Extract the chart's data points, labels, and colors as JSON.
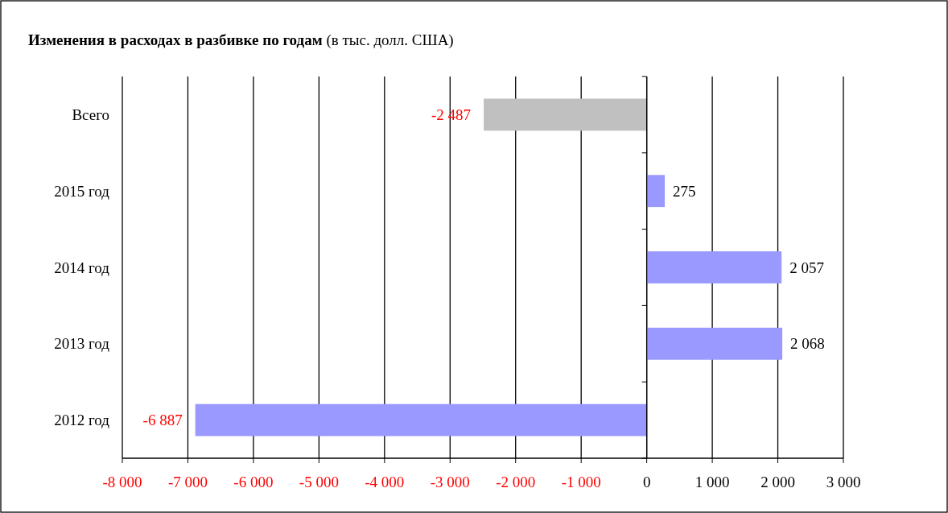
{
  "chart_data": {
    "type": "bar",
    "orientation": "horizontal",
    "title": "Изменения в расходах в разбивке по годам",
    "subtitle": "(в тыс. долл. США)",
    "categories": [
      "Всего",
      "2015 год",
      "2014 год",
      "2013 год",
      "2012 год"
    ],
    "values": [
      -2487,
      275,
      2057,
      2068,
      -6887
    ],
    "colors": [
      "#c0c0c0",
      "#9999ff",
      "#9999ff",
      "#9999ff",
      "#9999ff"
    ],
    "value_labels": [
      "-2 487",
      "275",
      "2 057",
      "2 068",
      "-6 887"
    ],
    "xlim": [
      -8000,
      3000
    ],
    "xticks": [
      {
        "value": -8000,
        "label": "-8 000"
      },
      {
        "value": -7000,
        "label": "-7 000"
      },
      {
        "value": -6000,
        "label": "-6 000"
      },
      {
        "value": -5000,
        "label": "-5 000"
      },
      {
        "value": -4000,
        "label": "-4 000"
      },
      {
        "value": -3000,
        "label": "-3 000"
      },
      {
        "value": -2000,
        "label": "-2 000"
      },
      {
        "value": -1000,
        "label": "-1 000"
      },
      0,
      {
        "value": 1000,
        "label": "1 000"
      },
      {
        "value": 2000,
        "label": "2 000"
      },
      {
        "value": 3000,
        "label": "3 000"
      }
    ],
    "grid": "x"
  }
}
